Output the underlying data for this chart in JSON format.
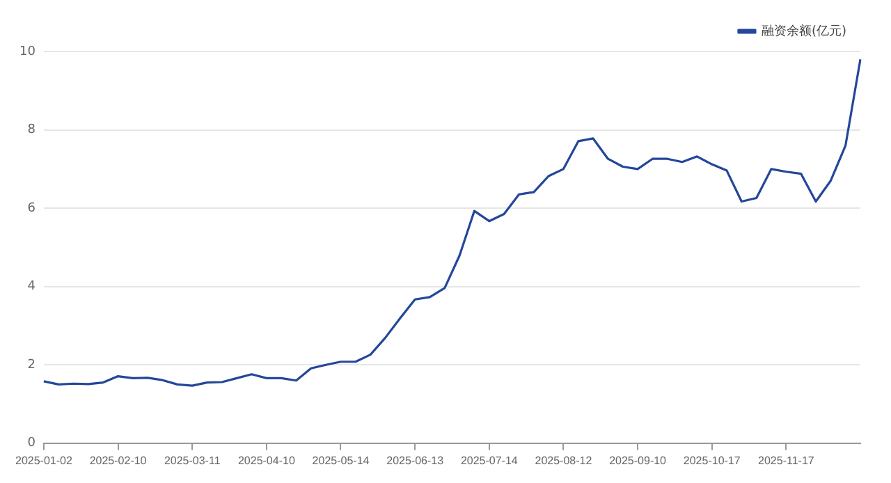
{
  "chart_data": {
    "type": "line",
    "categories": [
      "2025-01-02",
      null,
      null,
      null,
      null,
      "2025-02-10",
      null,
      null,
      null,
      null,
      "2025-03-11",
      null,
      null,
      null,
      null,
      "2025-04-10",
      null,
      null,
      null,
      null,
      "2025-05-14",
      null,
      null,
      null,
      null,
      "2025-06-13",
      null,
      null,
      null,
      null,
      "2025-07-14",
      null,
      null,
      null,
      null,
      "2025-08-12",
      null,
      null,
      null,
      null,
      "2025-09-10",
      null,
      null,
      null,
      null,
      "2025-10-17",
      null,
      null,
      null,
      null,
      "2025-11-17",
      null,
      null,
      null,
      null,
      null
    ],
    "series": [
      {
        "name": "融资余额(亿元)",
        "color": "#24479a",
        "values": [
          1.58,
          1.5,
          1.52,
          1.51,
          1.55,
          1.71,
          1.66,
          1.67,
          1.61,
          1.5,
          1.47,
          1.55,
          1.56,
          1.66,
          1.76,
          1.66,
          1.66,
          1.6,
          1.91,
          2.0,
          2.08,
          2.08,
          2.26,
          2.69,
          3.19,
          3.67,
          3.73,
          3.96,
          4.79,
          5.93,
          5.67,
          5.85,
          6.35,
          6.41,
          6.82,
          7.0,
          7.71,
          7.78,
          7.26,
          7.06,
          7.0,
          7.26,
          7.26,
          7.18,
          7.32,
          7.12,
          6.96,
          6.17,
          6.26,
          7.0,
          6.93,
          6.88,
          6.17,
          6.7,
          7.6,
          9.8
        ]
      }
    ],
    "ylim": [
      0,
      10
    ],
    "yticks": [
      0,
      2,
      4,
      6,
      8,
      10
    ],
    "grid": "y",
    "legend": "top right",
    "marker": "none",
    "line_style": "solid"
  }
}
